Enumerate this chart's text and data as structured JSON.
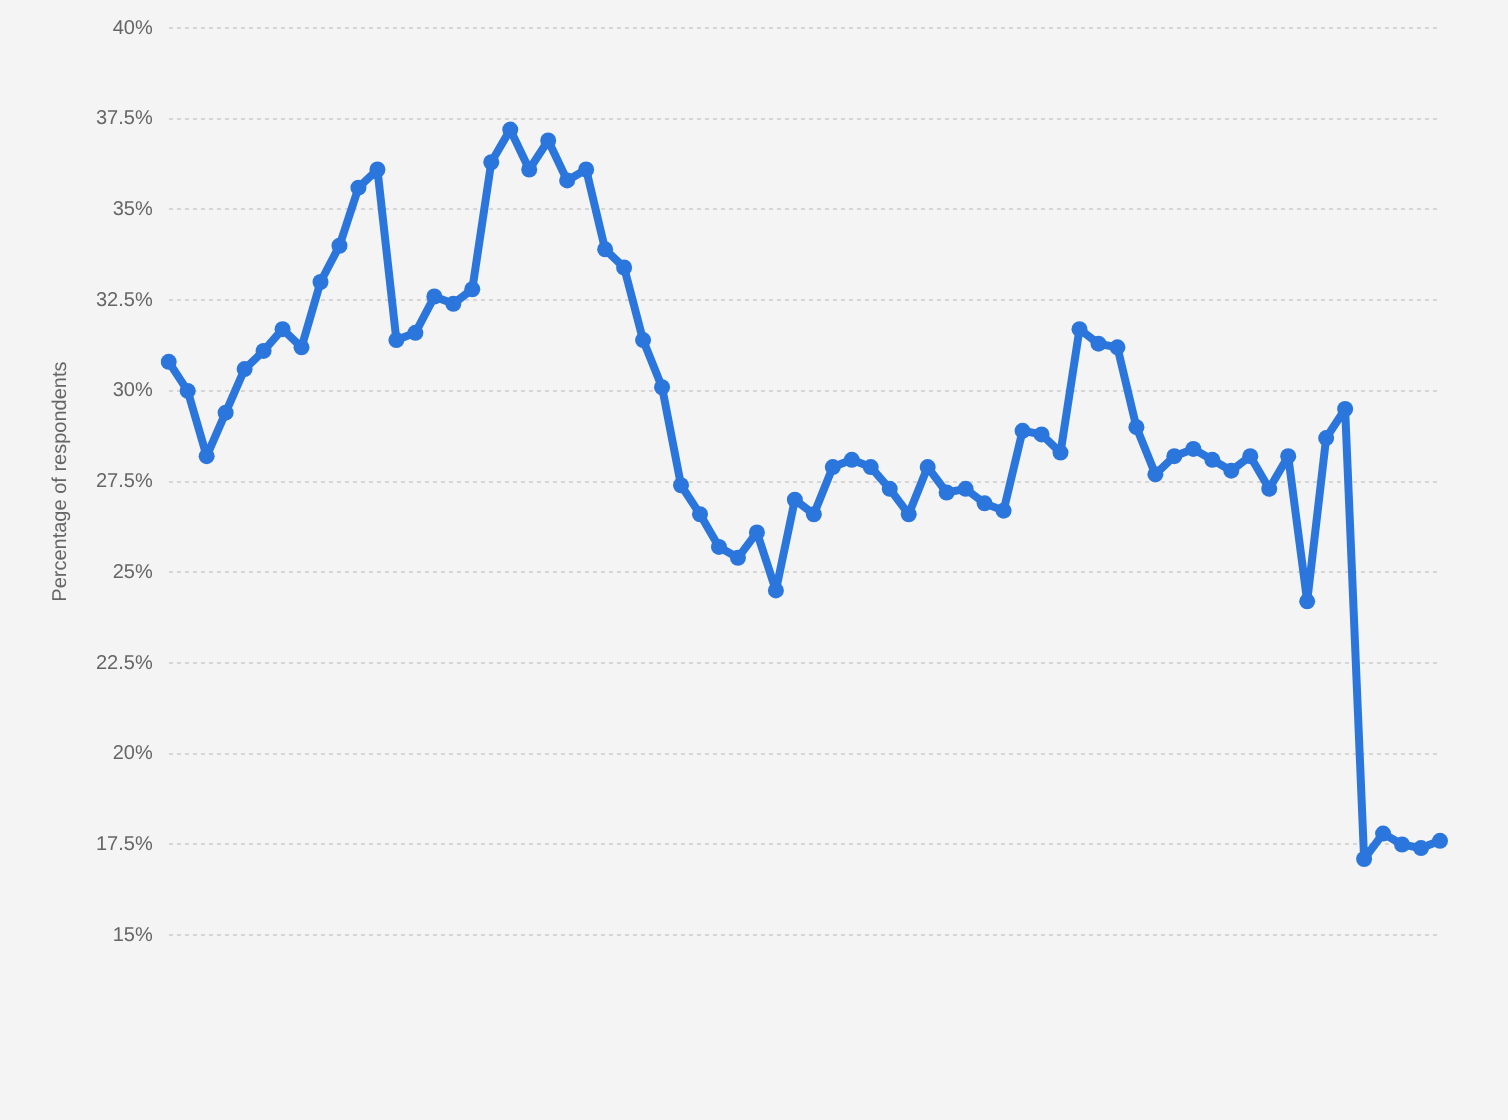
{
  "chart_data": {
    "type": "line",
    "ylabel": "Percentage of respondents",
    "categories": [
      null,
      null,
      null,
      null,
      null,
      null,
      null,
      null,
      null,
      null,
      null,
      null,
      null,
      null,
      null,
      null,
      null,
      null,
      null,
      null,
      null,
      null,
      null,
      null,
      null,
      null,
      null,
      null,
      null,
      null,
      null,
      null,
      null,
      null,
      null,
      null,
      null,
      null,
      null,
      null,
      null,
      null,
      null,
      null,
      null,
      null,
      null,
      null,
      null,
      null,
      null,
      null,
      null,
      null,
      null,
      null,
      null,
      null,
      null,
      null,
      null,
      null,
      null,
      null,
      null,
      null,
      null,
      null
    ],
    "series": [
      {
        "color": "#2a76dd",
        "values": [
          30.8,
          30.0,
          28.2,
          29.4,
          30.6,
          31.1,
          31.7,
          31.2,
          33.0,
          34.0,
          35.6,
          36.1,
          31.4,
          31.6,
          32.6,
          32.4,
          32.8,
          36.3,
          37.2,
          36.1,
          36.9,
          35.8,
          36.1,
          33.9,
          33.4,
          31.4,
          30.1,
          27.4,
          26.6,
          25.7,
          25.4,
          26.1,
          24.5,
          27.0,
          26.6,
          27.9,
          28.1,
          27.9,
          27.3,
          26.6,
          27.9,
          27.2,
          27.3,
          26.9,
          26.7,
          28.9,
          28.8,
          28.3,
          31.7,
          31.3,
          31.2,
          29.0,
          27.7,
          28.2,
          28.4,
          28.1,
          27.8,
          28.2,
          27.3,
          28.2,
          24.2,
          28.7,
          29.5,
          17.1,
          17.8,
          17.5,
          17.4,
          17.6
        ]
      }
    ],
    "ylim": [
      15,
      40
    ],
    "yticks": [
      {
        "value": 15,
        "label": "15%"
      },
      {
        "value": 17.5,
        "label": "17.5%"
      },
      {
        "value": 20,
        "label": "20%"
      },
      {
        "value": 22.5,
        "label": "22.5%"
      },
      {
        "value": 25,
        "label": "25%"
      },
      {
        "value": 27.5,
        "label": "27.5%"
      },
      {
        "value": 30,
        "label": "30%"
      },
      {
        "value": 32.5,
        "label": "32.5%"
      },
      {
        "value": 35,
        "label": "35%"
      },
      {
        "value": 37.5,
        "label": "37.5%"
      },
      {
        "value": 40,
        "label": "40%"
      }
    ],
    "grid": "y",
    "legend": false,
    "marker": "circle",
    "line_style": "solid"
  }
}
